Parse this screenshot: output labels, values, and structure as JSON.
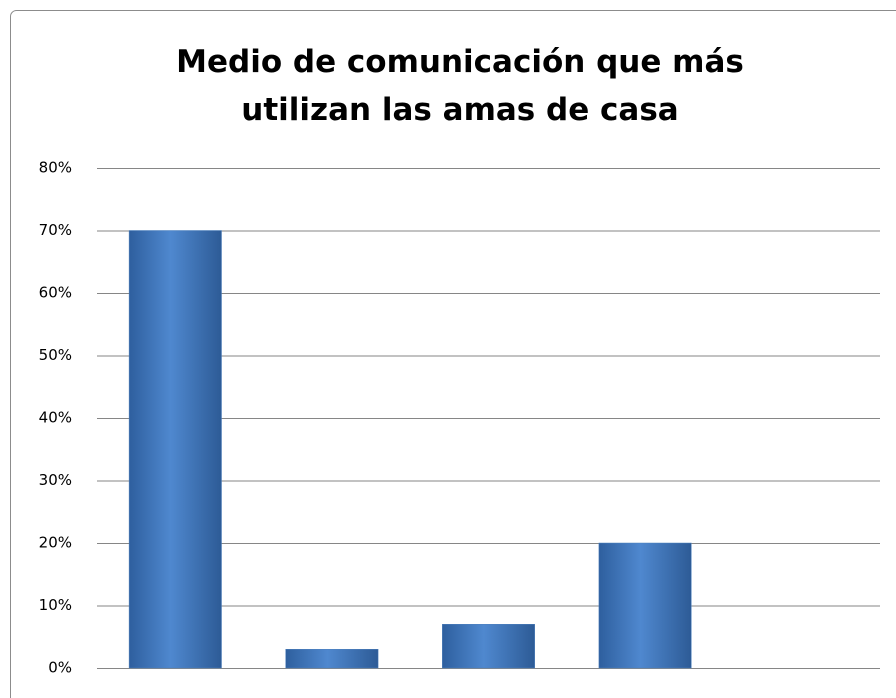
{
  "chart_data": {
    "type": "bar",
    "title": "Medio de comunicación que más utilizan las amas de casa",
    "categories": [
      null,
      null,
      null,
      null,
      null
    ],
    "values": [
      70,
      3,
      7,
      20,
      0
    ],
    "color": "#4f81bd",
    "ylim": [
      0,
      80
    ],
    "yticks": [
      {
        "value": 0,
        "label": "0%"
      },
      {
        "value": 10,
        "label": "10%"
      },
      {
        "value": 20,
        "label": "20%"
      },
      {
        "value": 30,
        "label": "30%"
      },
      {
        "value": 40,
        "label": "40%"
      },
      {
        "value": 50,
        "label": "50%"
      },
      {
        "value": 60,
        "label": "60%"
      },
      {
        "value": 70,
        "label": "70%"
      },
      {
        "value": 80,
        "label": "80%"
      }
    ],
    "grid": true
  }
}
